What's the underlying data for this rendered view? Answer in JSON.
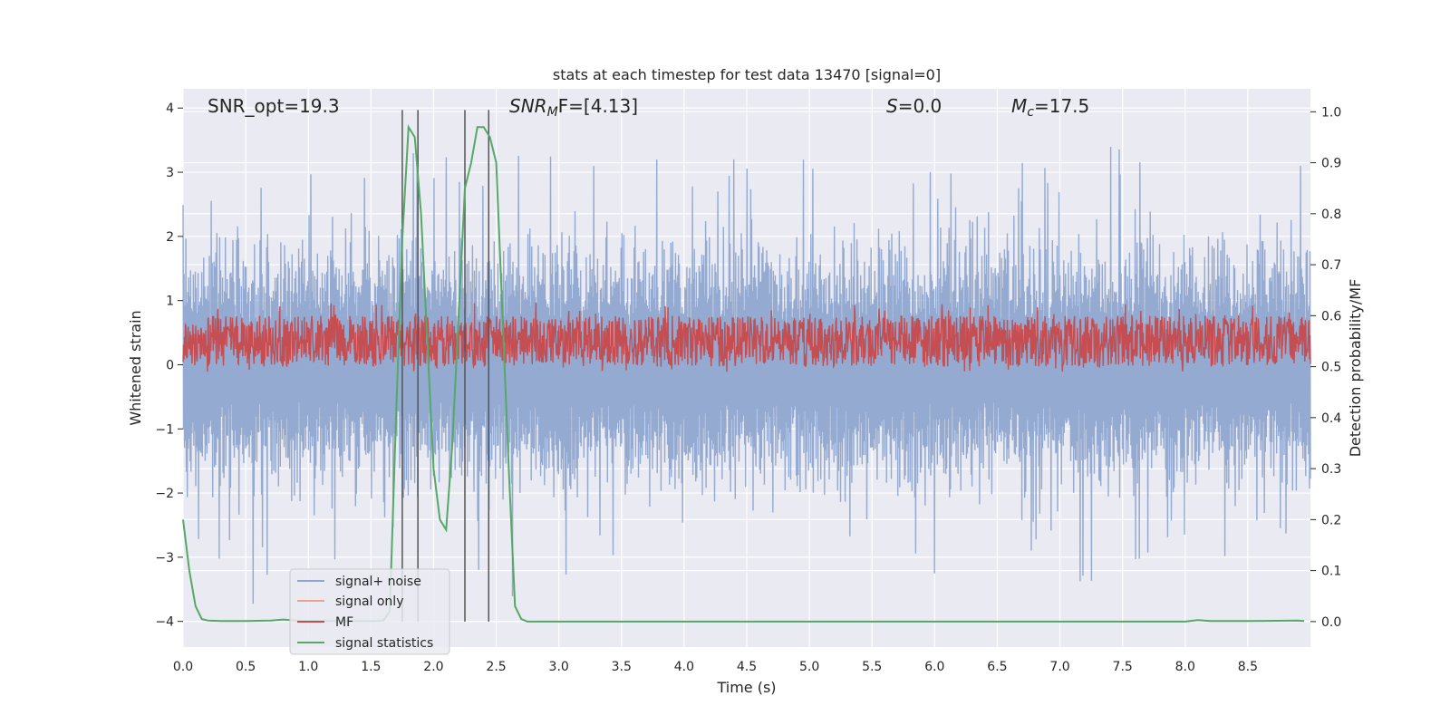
{
  "chart_data": {
    "type": "line",
    "title": "stats at each timestep for test data 13470 [signal=0]",
    "xlabel": "Time (s)",
    "ylabel_left": "Whitened strain",
    "ylabel_right": "Detection probability/MF",
    "xlim": [
      0,
      9.0
    ],
    "ylim_left": [
      -4.4,
      4.3
    ],
    "ylim_right": [
      -0.05,
      1.045
    ],
    "x_ticks": [
      "0.0",
      "0.5",
      "1.0",
      "1.5",
      "2.0",
      "2.5",
      "3.0",
      "3.5",
      "4.0",
      "4.5",
      "5.0",
      "5.5",
      "6.0",
      "6.5",
      "7.0",
      "7.5",
      "8.0",
      "8.5"
    ],
    "y_left_ticks": [
      "4",
      "3",
      "2",
      "1",
      "0",
      "−1",
      "−2",
      "−3",
      "−4"
    ],
    "y_right_ticks": [
      "1.0",
      "0.9",
      "0.8",
      "0.7",
      "0.6",
      "0.5",
      "0.4",
      "0.3",
      "0.2",
      "0.1",
      "0.0"
    ],
    "grid": true,
    "legend_position": "lower-left",
    "annotations": {
      "snr_opt": "SNR_opt=19.3",
      "snr_mf_var": "SNR",
      "snr_mf_sub": "M",
      "snr_mf_rest": "F=[4.13]",
      "s_var": "S",
      "s_rest": "=0.0",
      "mc_var": "M",
      "mc_sub": "c",
      "mc_rest": "=17.5"
    },
    "vertical_lines_x": [
      1.75,
      1.875,
      2.25,
      2.44
    ],
    "series": [
      {
        "name": "signal+ noise",
        "color": "#8fa6cf",
        "axis": "left",
        "description_values": {
          "envelope_upper": 3.2,
          "envelope_lower": -3.2,
          "spike_max": 3.8,
          "spike_min": -4.0
        }
      },
      {
        "name": "signal only",
        "color": "#eaa48a",
        "axis": "left",
        "values": []
      },
      {
        "name": "MF",
        "color": "#c44e52",
        "axis": "right",
        "description_values": {
          "baseline": 0.55,
          "band_low": 0.5,
          "band_high": 0.6,
          "spike_max": 0.63
        }
      },
      {
        "name": "signal statistics",
        "color": "#55a868",
        "axis": "right",
        "x": [
          0.0,
          0.05,
          0.1,
          0.15,
          0.2,
          0.3,
          0.5,
          0.7,
          0.8,
          0.9,
          1.0,
          1.5,
          1.6,
          1.65,
          1.7,
          1.75,
          1.8,
          1.85,
          1.9,
          1.95,
          2.0,
          2.05,
          2.1,
          2.15,
          2.2,
          2.25,
          2.3,
          2.35,
          2.4,
          2.45,
          2.5,
          2.55,
          2.6,
          2.65,
          2.7,
          2.75,
          3.0,
          5.0,
          8.0,
          8.1,
          8.2,
          8.5,
          8.9,
          8.95
        ],
        "y": [
          0.2,
          0.1,
          0.03,
          0.005,
          0.002,
          0.001,
          0.001,
          0.002,
          0.004,
          0.002,
          0.001,
          0.001,
          0.002,
          0.02,
          0.4,
          0.75,
          0.97,
          0.95,
          0.8,
          0.55,
          0.3,
          0.2,
          0.18,
          0.35,
          0.6,
          0.85,
          0.9,
          0.97,
          0.97,
          0.95,
          0.9,
          0.6,
          0.3,
          0.03,
          0.005,
          0.0,
          0.0,
          0.0,
          0.0,
          0.003,
          0.001,
          0.001,
          0.002,
          0.001
        ]
      }
    ]
  },
  "colors": {
    "axes_background": "#eaeaf2",
    "grid": "#ffffff",
    "vline": "#555555"
  }
}
